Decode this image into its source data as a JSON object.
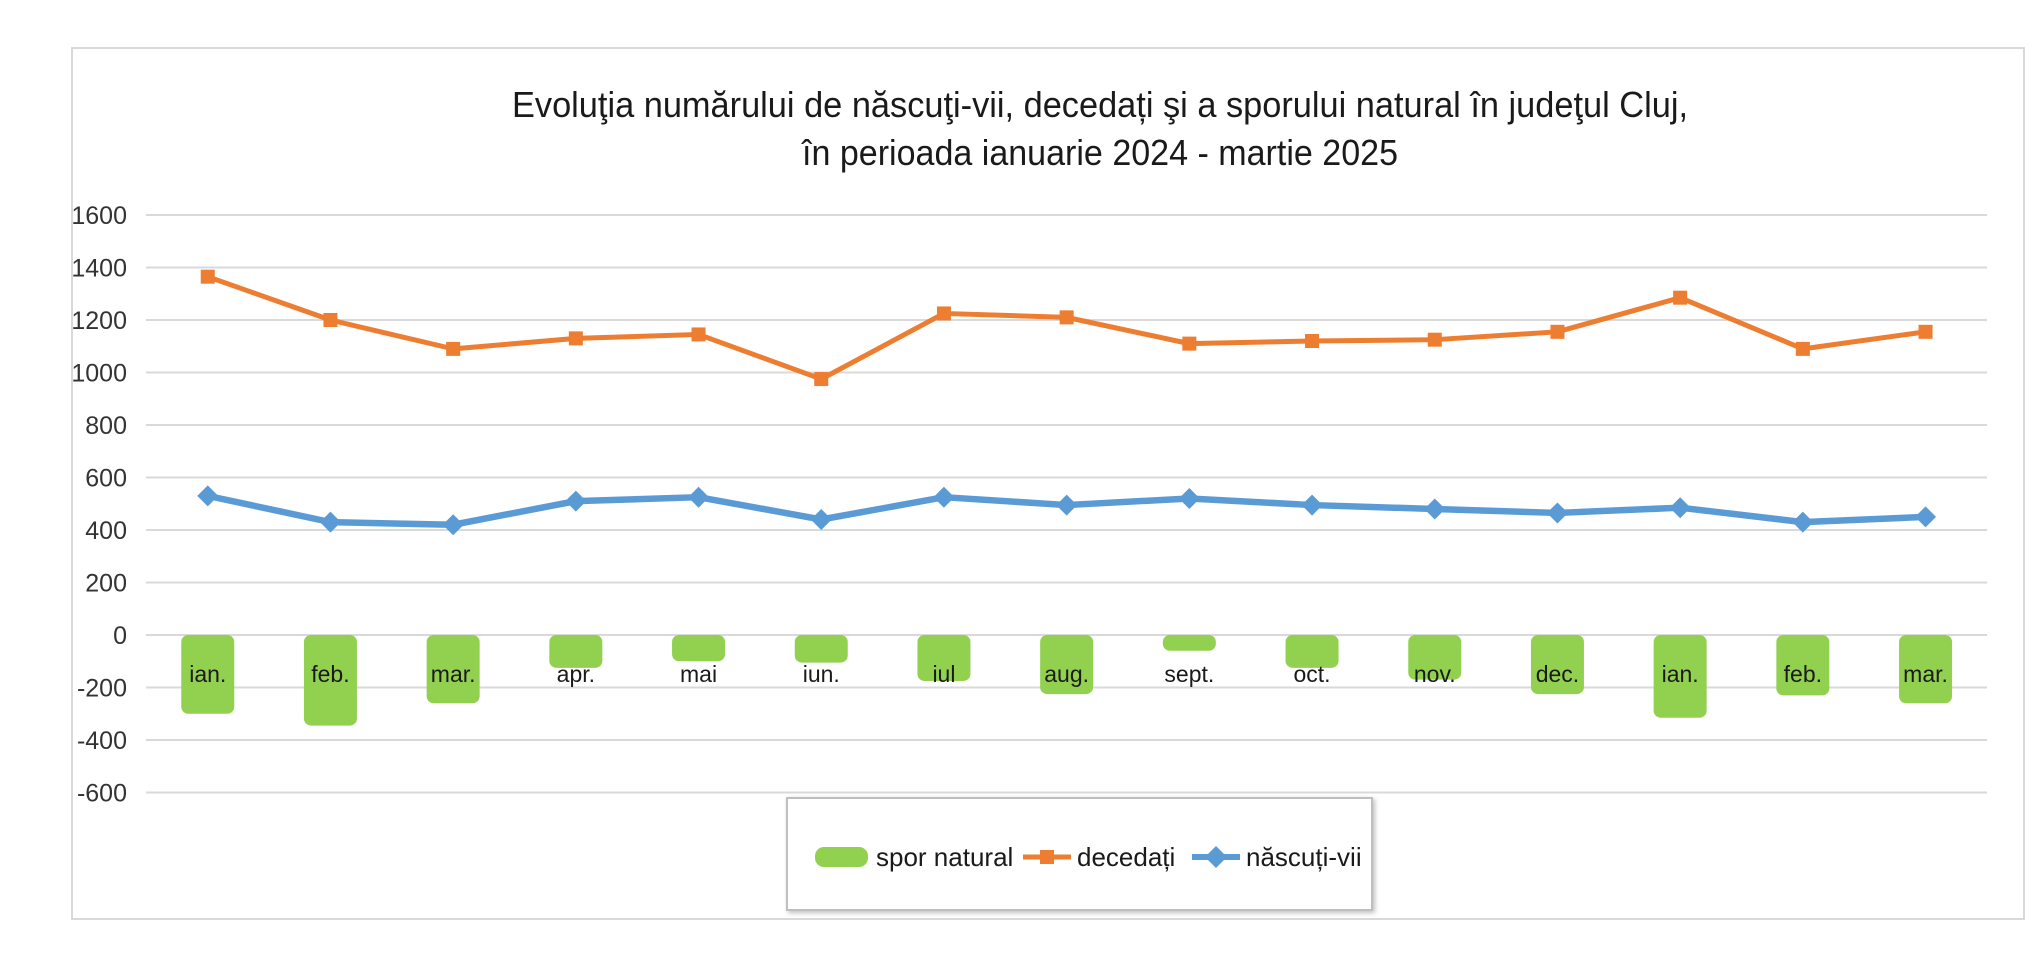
{
  "chart": {
    "title_line1": "Evoluţia numărului de născuţi-vii, decedați şi a sporului natural în judeţul Cluj,",
    "title_line2": "în perioada ianuarie 2024 - martie 2025"
  },
  "chart_data": {
    "type": "combo",
    "title": "Evoluţia numărului de născuţi-vii, decedați şi a sporului natural în judeţul Cluj, în perioada ianuarie 2024 - martie 2025",
    "categories": [
      "ian.",
      "feb.",
      "mar.",
      "apr.",
      "mai",
      "iun.",
      "iul",
      "aug.",
      "sept.",
      "oct.",
      "nov.",
      "dec.",
      "ian.",
      "feb.",
      "mar."
    ],
    "series": [
      {
        "name": "spor natural",
        "type": "bar",
        "color": "#92d050",
        "values": [
          -300,
          -345,
          -260,
          -125,
          -100,
          -105,
          -175,
          -225,
          -60,
          -125,
          -170,
          -225,
          -315,
          -230,
          -260
        ]
      },
      {
        "name": "decedați",
        "type": "line",
        "marker": "square",
        "color": "#ed7d31",
        "values": [
          1365,
          1200,
          1090,
          1130,
          1145,
          975,
          1225,
          1210,
          1110,
          1120,
          1125,
          1155,
          1285,
          1090,
          1155
        ]
      },
      {
        "name": "născuți-vii",
        "type": "line",
        "marker": "diamond",
        "color": "#5b9bd5",
        "values": [
          530,
          430,
          420,
          510,
          525,
          440,
          525,
          495,
          520,
          495,
          480,
          465,
          485,
          430,
          450
        ]
      }
    ],
    "ylim": [
      -600,
      1600
    ],
    "ytick_step": 200,
    "y_ticks": [
      "1600",
      "1400",
      "1200",
      "1000",
      "800",
      "600",
      "400",
      "200",
      "0",
      "-200",
      "-400",
      "-600"
    ],
    "grid": true,
    "legend_position": "bottom",
    "colors": {
      "gridline": "#d9d9d9",
      "frame_border": "#d9d9d9",
      "legend_border": "#bfbfbf",
      "axis_label": "#333333",
      "month_label": "#1a1a1a",
      "title": "#1a1a1a"
    }
  }
}
